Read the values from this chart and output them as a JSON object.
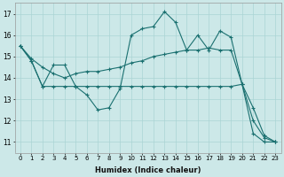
{
  "xlabel": "Humidex (Indice chaleur)",
  "background_color": "#cce8e8",
  "grid_color": "#aad4d4",
  "line_color": "#1a7070",
  "xlim": [
    -0.5,
    23.5
  ],
  "ylim": [
    10.5,
    17.5
  ],
  "yticks": [
    11,
    12,
    13,
    14,
    15,
    16,
    17
  ],
  "xticks": [
    0,
    1,
    2,
    3,
    4,
    5,
    6,
    7,
    8,
    9,
    10,
    11,
    12,
    13,
    14,
    15,
    16,
    17,
    18,
    19,
    20,
    21,
    22,
    23
  ],
  "line1_x": [
    0,
    1,
    2,
    3,
    4,
    5,
    6,
    7,
    8,
    9,
    10,
    11,
    12,
    13,
    14,
    15,
    16,
    17,
    18,
    19,
    20,
    21,
    22,
    23
  ],
  "line1_y": [
    15.5,
    14.8,
    13.6,
    14.6,
    14.6,
    13.6,
    13.2,
    12.5,
    12.6,
    13.5,
    16.0,
    16.3,
    16.4,
    17.1,
    16.6,
    15.3,
    16.0,
    15.3,
    16.2,
    15.9,
    13.7,
    12.6,
    11.3,
    11.0
  ],
  "line2_x": [
    0,
    1,
    2,
    3,
    4,
    5,
    6,
    7,
    8,
    9,
    10,
    11,
    12,
    13,
    14,
    15,
    16,
    17,
    18,
    19,
    20,
    21,
    22,
    23
  ],
  "line2_y": [
    15.5,
    14.8,
    13.6,
    13.6,
    13.6,
    13.6,
    13.6,
    13.6,
    13.6,
    13.6,
    13.6,
    13.6,
    13.6,
    13.6,
    13.6,
    13.6,
    13.6,
    13.6,
    13.6,
    13.6,
    13.7,
    11.4,
    11.0,
    11.0
  ],
  "line3_x": [
    0,
    1,
    2,
    3,
    4,
    5,
    6,
    7,
    8,
    9,
    10,
    11,
    12,
    13,
    14,
    15,
    16,
    17,
    18,
    19,
    20,
    21,
    22,
    23
  ],
  "line3_y": [
    15.5,
    14.9,
    14.5,
    14.2,
    14.0,
    14.2,
    14.3,
    14.3,
    14.4,
    14.5,
    14.7,
    14.8,
    15.0,
    15.1,
    15.2,
    15.3,
    15.3,
    15.4,
    15.3,
    15.3,
    13.7,
    12.0,
    11.2,
    11.0
  ]
}
